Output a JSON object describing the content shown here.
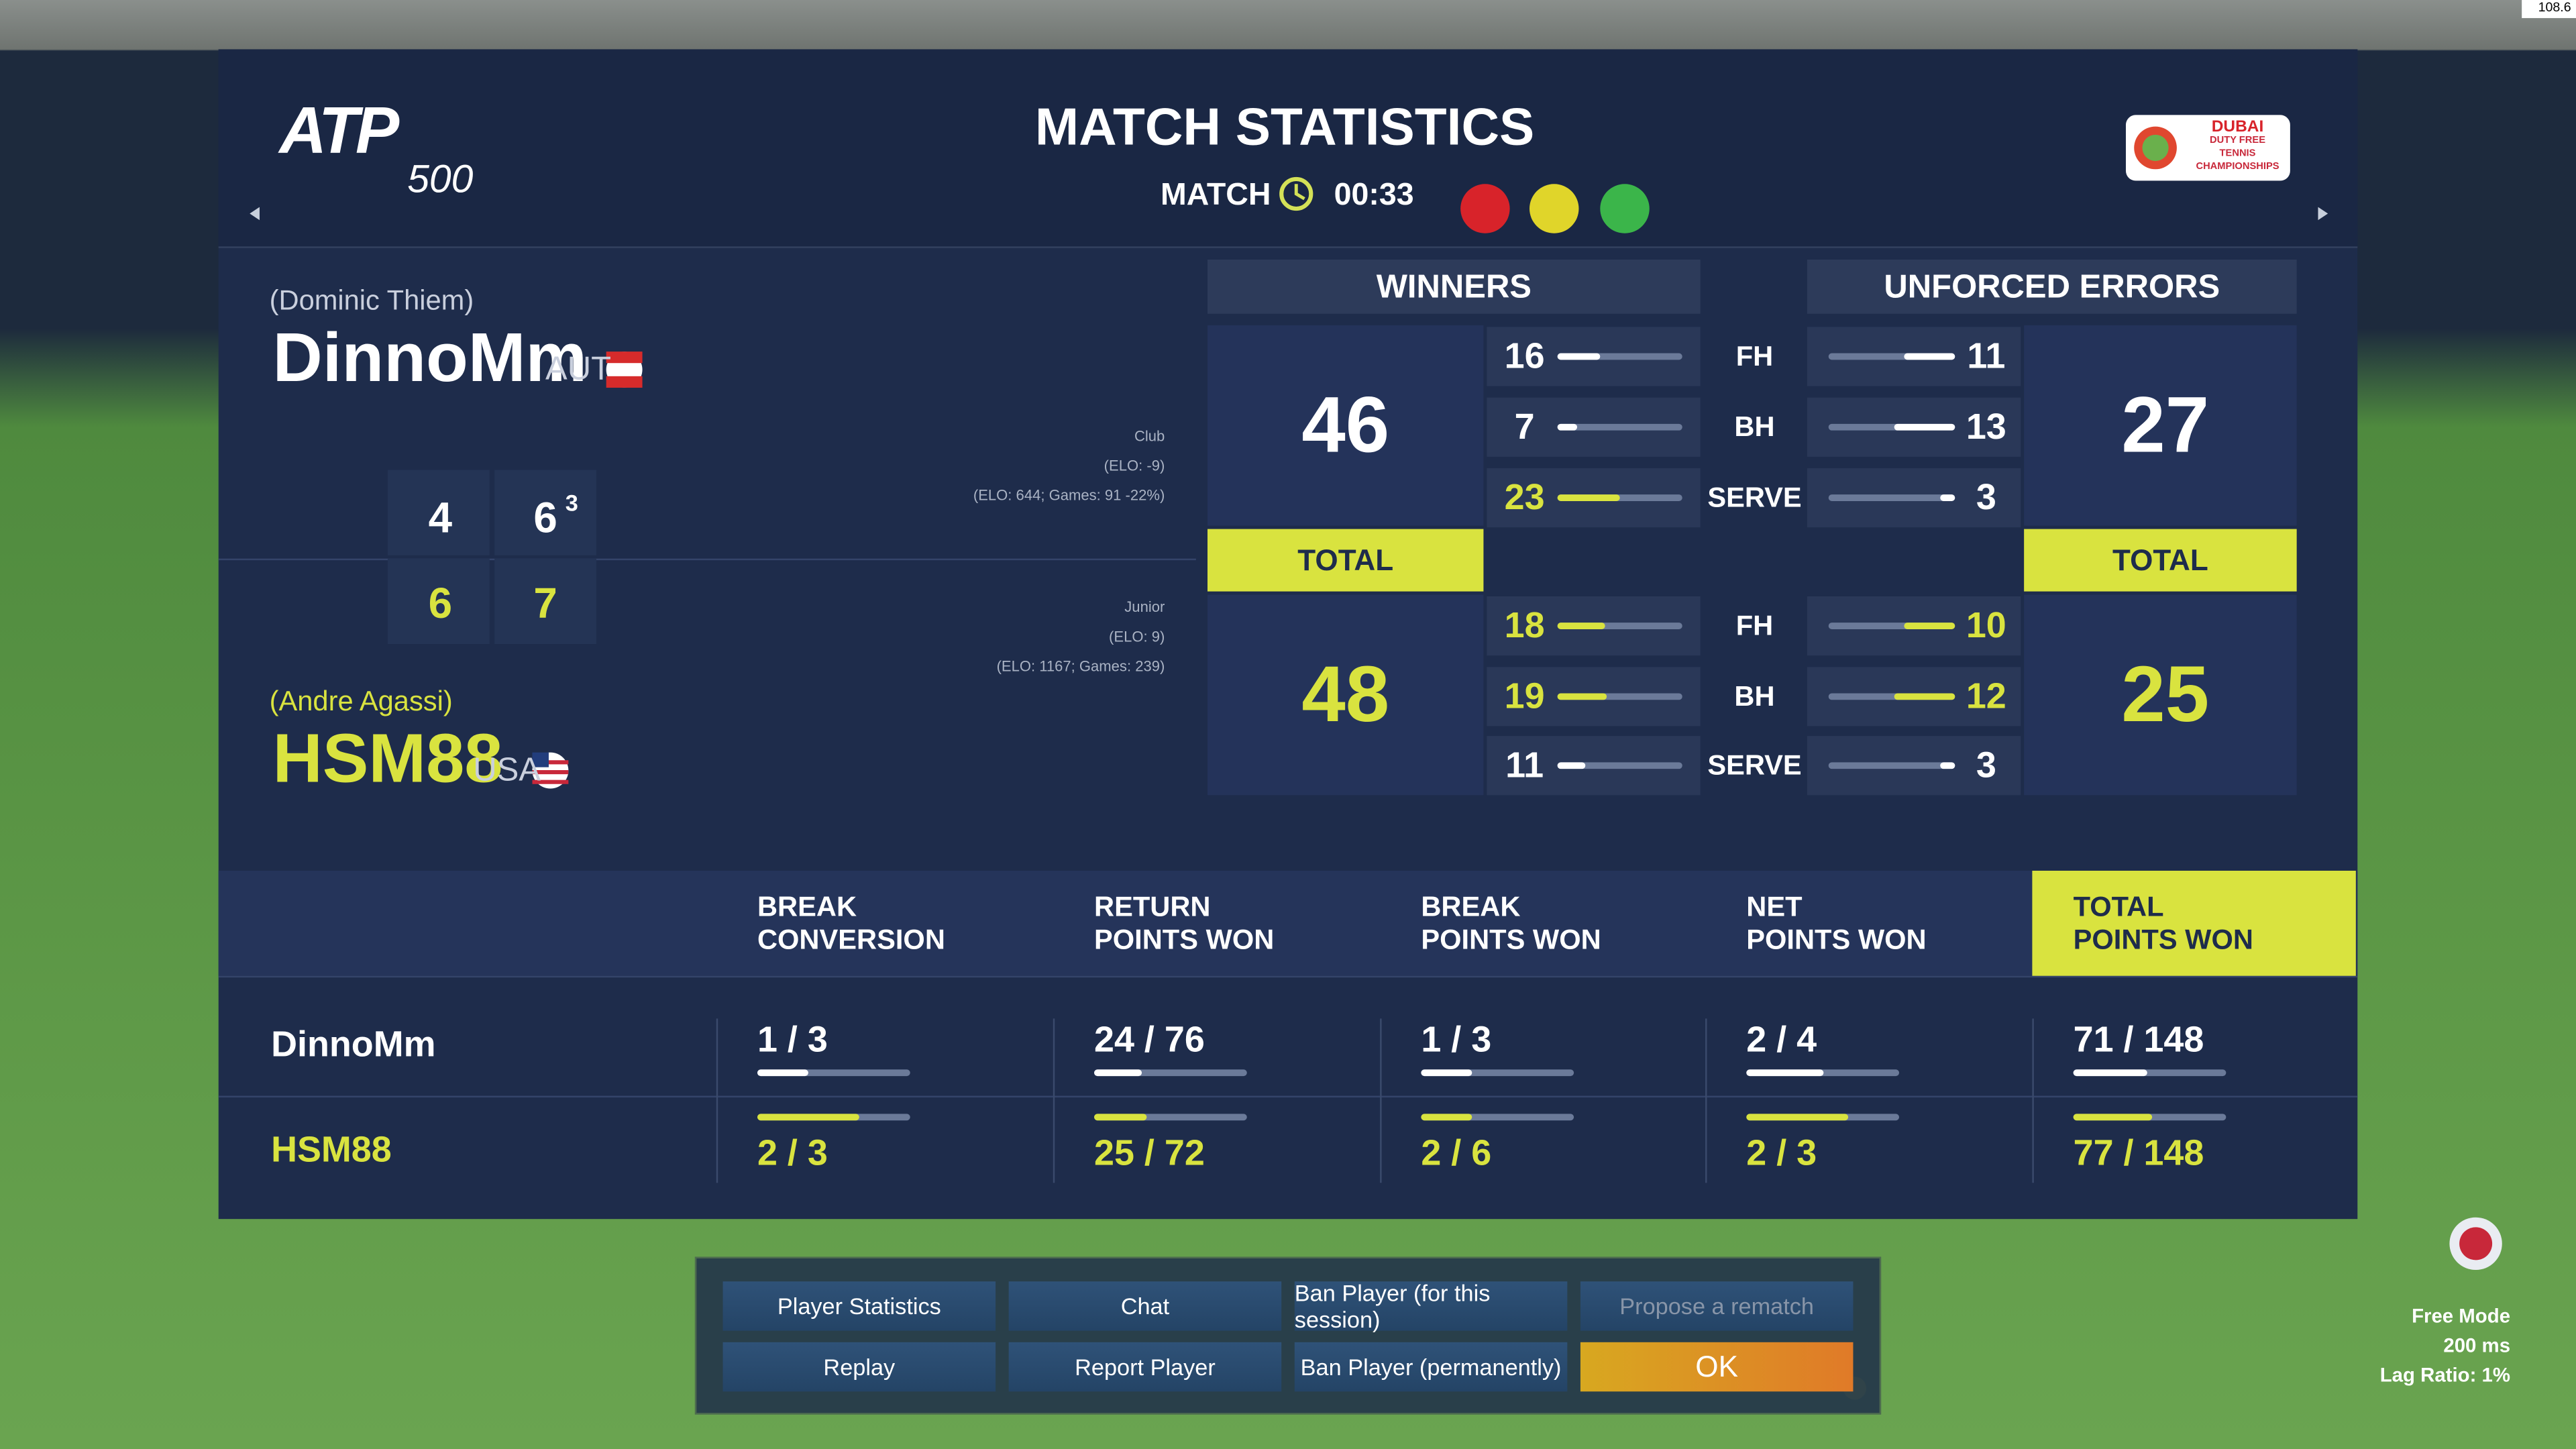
{
  "corner_fps": "108.6",
  "header": {
    "logo": "ATP",
    "logo_tier": "500",
    "title": "MATCH STATISTICS",
    "match_label": "MATCH",
    "time": "00:33",
    "sponsor": [
      "DUBAI",
      "DUTY FREE",
      "TENNIS",
      "CHAMPIONSHIPS"
    ]
  },
  "stat_titles": {
    "winners": "WINNERS",
    "errors": "UNFORCED ERRORS",
    "total": "TOTAL",
    "strokes": [
      "FH",
      "BH",
      "SERVE"
    ]
  },
  "players": [
    {
      "real_name": "(Dominic Thiem)",
      "name": "DinnoMm",
      "country": "AUT",
      "info": [
        "Club",
        "(ELO: -9)",
        "(ELO: 644; Games: 91 -22%)"
      ],
      "sets": [
        4,
        6
      ],
      "tiebreak": 3,
      "winners": {
        "total": 46,
        "strokes": [
          16,
          7,
          23
        ]
      },
      "errors": {
        "total": 27,
        "strokes": [
          11,
          13,
          3
        ]
      }
    },
    {
      "real_name": "(Andre Agassi)",
      "name": "HSM88",
      "country": "USA",
      "info": [
        "Junior",
        "(ELO: 9)",
        "(ELO: 1167; Games: 239)"
      ],
      "sets": [
        6,
        7
      ],
      "winners": {
        "total": 48,
        "strokes": [
          18,
          19,
          11
        ]
      },
      "errors": {
        "total": 25,
        "strokes": [
          10,
          12,
          3
        ]
      }
    }
  ],
  "table": {
    "headers": [
      [
        "BREAK",
        "CONVERSION"
      ],
      [
        "RETURN",
        "POINTS WON"
      ],
      [
        "BREAK",
        "POINTS WON"
      ],
      [
        "NET",
        "POINTS WON"
      ],
      [
        "TOTAL",
        "POINTS WON"
      ]
    ],
    "rows": [
      [
        "1 / 3",
        "24 / 76",
        "1 / 3",
        "2 / 4",
        "71 / 148"
      ],
      [
        "2 / 3",
        "25 / 72",
        "2 / 6",
        "2 / 3",
        "77 / 148"
      ]
    ]
  },
  "buttons": [
    "Player Statistics",
    "Chat",
    "Ban Player (for this session)",
    "Propose a rematch",
    "Replay",
    "Report Player",
    "Ban Player (permanently)",
    "OK"
  ],
  "status": [
    "Free Mode",
    "200 ms",
    "Lag Ratio: 1%"
  ]
}
